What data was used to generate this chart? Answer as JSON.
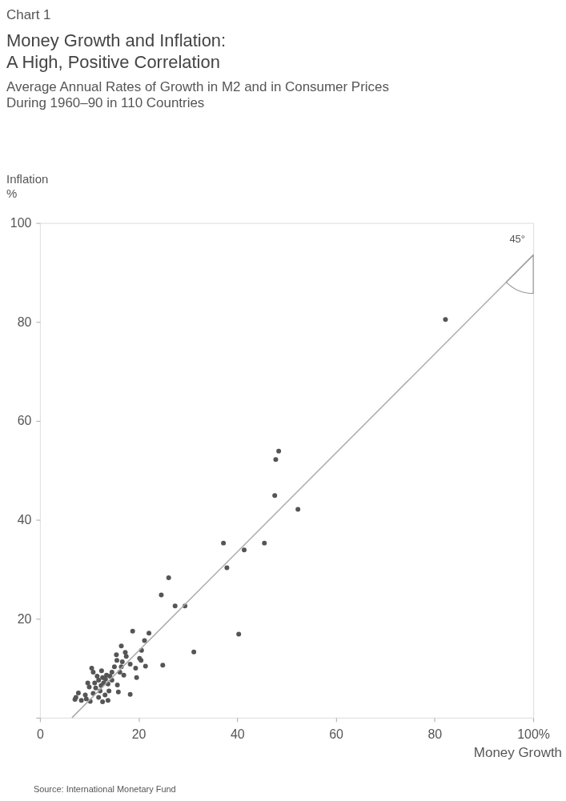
{
  "chart_data": {
    "type": "scatter",
    "title": "Money Growth and Inflation:\nA High, Positive Correlation",
    "subtitle": "Average Annual Rates of Growth in M2 and in Consumer Prices\nDuring 1960–90 in 110 Countries",
    "xlabel": "Money Growth",
    "ylabel": "Inflation\n%",
    "annotations": [
      "Chart 1",
      "45°",
      "Source: International Monetary Fund"
    ],
    "xlim": [
      0,
      100
    ],
    "ylim": [
      0,
      100
    ],
    "xticks": [
      0,
      20,
      40,
      60,
      80,
      {
        "value": 100,
        "label": "100%"
      }
    ],
    "yticks": [
      {
        "value": 0,
        "label": null
      },
      20,
      40,
      60,
      80,
      100
    ],
    "grid": false,
    "legend": false,
    "marker": "circle",
    "series": [
      {
        "color": "#555555",
        "x": [
          82.2,
          48.4,
          47.8,
          47.6,
          52.3,
          37.2,
          45.5,
          41.4,
          37.9,
          26.1,
          24.6,
          27.4,
          29.4,
          40.3,
          31.2,
          18.8,
          22.1,
          21.2,
          20.6,
          24.9,
          21.4,
          20.2,
          16.5,
          15.5,
          17.5,
          20.5,
          19.4,
          16.5,
          18.3,
          19.6,
          15.7,
          15.9,
          18.3,
          10.5,
          12.5,
          13.5,
          14.6,
          15.6,
          16.7,
          12.7,
          11.9,
          11.1,
          9.7,
          10.0,
          11.3,
          12.4,
          13.8,
          14.0,
          13.2,
          13.8,
          12.7,
          10.8,
          9.2,
          8.4,
          7.3,
          7.1,
          7.8,
          9.4,
          10.2,
          11.9,
          14.6,
          15.1,
          16.2,
          17.0,
          17.3,
          10.8,
          11.6,
          12.9,
          13.3,
          14.2,
          12.2
        ],
        "values": [
          80.5,
          53.9,
          52.2,
          44.9,
          42.1,
          35.3,
          35.3,
          33.9,
          30.3,
          28.3,
          24.8,
          22.6,
          22.6,
          16.9,
          13.3,
          17.5,
          17.1,
          15.6,
          13.6,
          10.6,
          10.4,
          12.0,
          14.5,
          12.7,
          12.4,
          11.6,
          10.0,
          10.3,
          10.8,
          8.1,
          6.6,
          5.2,
          4.7,
          10.0,
          9.5,
          8.6,
          9.2,
          11.6,
          11.3,
          8.1,
          7.6,
          7.0,
          7.0,
          6.2,
          6.0,
          6.5,
          6.8,
          5.4,
          4.6,
          3.5,
          3.2,
          4.9,
          4.6,
          3.5,
          4.1,
          3.7,
          5.0,
          3.8,
          3.3,
          4.1,
          7.6,
          10.3,
          9.2,
          8.6,
          13.2,
          9.2,
          8.4,
          7.0,
          7.8,
          8.4,
          5.4
        ]
      },
      {
        "type": "line",
        "color": "#aaaaaa",
        "line_style": "solid",
        "marker": "none",
        "x": [
          6.5,
          100
        ],
        "values": [
          0,
          93.5
        ]
      }
    ]
  }
}
